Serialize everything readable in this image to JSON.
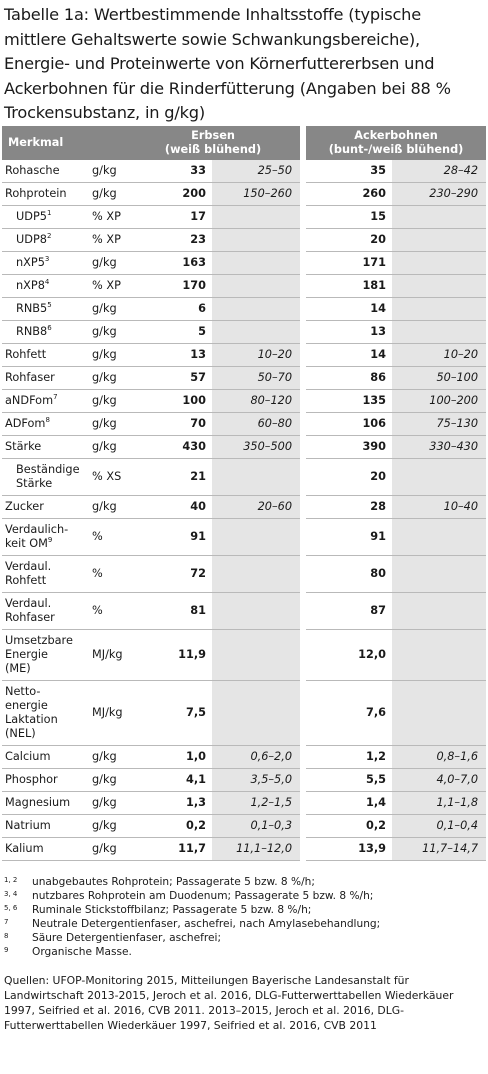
{
  "title": [
    "Tabelle 1a: Wertbestimmende Inhaltsstoffe (typische",
    "mittlere Gehaltswerte sowie Schwankungsbereiche),",
    "Energie- und Proteinwerte von Körnerfuttererbsen und",
    "Ackerbohnen für die Rinderfütterung (Angaben bei 88 %",
    "Trockensubstanz, in g/kg)"
  ],
  "table": {
    "header": {
      "feature": "Merkmal",
      "group1": [
        "Erbsen",
        "(weiß blühend)"
      ],
      "group2": [
        "Ackerbohnen",
        "(bunt-/weiß blühend)"
      ]
    },
    "rows": [
      {
        "name": [
          "Rohasche"
        ],
        "unit": "g/kg",
        "v1": "33",
        "r1": "25–50",
        "v2": "35",
        "r2": "28–42"
      },
      {
        "name": [
          "Rohprotein"
        ],
        "unit": "g/kg",
        "v1": "200",
        "r1": "150–260",
        "v2": "260",
        "r2": "230–290"
      },
      {
        "name": [
          "UDP5"
        ],
        "sup": "1",
        "indent": true,
        "unit": "% XP",
        "v1": "17",
        "v2": "15"
      },
      {
        "name": [
          "UDP8"
        ],
        "sup": "2",
        "indent": true,
        "unit": "% XP",
        "v1": "23",
        "v2": "20"
      },
      {
        "name": [
          "nXP5"
        ],
        "sup": "3",
        "indent": true,
        "unit": "g/kg",
        "v1": "163",
        "v2": "171"
      },
      {
        "name": [
          "nXP8"
        ],
        "sup": "4",
        "indent": true,
        "unit": "% XP",
        "v1": "170",
        "v2": "181"
      },
      {
        "name": [
          "RNB5"
        ],
        "sup": "5",
        "indent": true,
        "unit": "g/kg",
        "v1": "6",
        "v2": "14"
      },
      {
        "name": [
          "RNB8"
        ],
        "sup": "6",
        "indent": true,
        "unit": "g/kg",
        "v1": "5",
        "v2": "13"
      },
      {
        "name": [
          "Rohfett"
        ],
        "unit": "g/kg",
        "v1": "13",
        "r1": "10–20",
        "v2": "14",
        "r2": "10–20"
      },
      {
        "name": [
          "Rohfaser"
        ],
        "unit": "g/kg",
        "v1": "57",
        "r1": "50–70",
        "v2": "86",
        "r2": "50–100"
      },
      {
        "name": [
          "aNDFom"
        ],
        "sup": "7",
        "unit": "g/kg",
        "v1": "100",
        "r1": "80–120",
        "v2": "135",
        "r2": "100–200"
      },
      {
        "name": [
          "ADFom"
        ],
        "sup": "8",
        "unit": "g/kg",
        "v1": "70",
        "r1": "60–80",
        "v2": "106",
        "r2": "75–130"
      },
      {
        "name": [
          "Stärke"
        ],
        "unit": "g/kg",
        "v1": "430",
        "r1": "350–500",
        "v2": "390",
        "r2": "330–430"
      },
      {
        "name": [
          "Beständige",
          "Stärke"
        ],
        "indent": true,
        "unit": "% XS",
        "v1": "21",
        "v2": "20"
      },
      {
        "name": [
          "Zucker"
        ],
        "unit": "g/kg",
        "v1": "40",
        "r1": "20–60",
        "v2": "28",
        "r2": "10–40"
      },
      {
        "name": [
          "Verdaulich-",
          "keit OM"
        ],
        "sup": "9",
        "unit": "%",
        "v1": "91",
        "v2": "91"
      },
      {
        "name": [
          "Verdaul.",
          "Rohfett"
        ],
        "unit": "%",
        "v1": "72",
        "v2": "80"
      },
      {
        "name": [
          "Verdaul.",
          "Rohfaser"
        ],
        "unit": "%",
        "v1": "81",
        "v2": "87"
      },
      {
        "name": [
          "Umsetzbare",
          "Energie",
          "(ME)"
        ],
        "unit": "MJ/kg",
        "v1": "11,9",
        "v2": "12,0"
      },
      {
        "name": [
          "Netto-",
          "energie",
          "Laktation",
          "(NEL)"
        ],
        "unit": "MJ/kg",
        "v1": "7,5",
        "v2": "7,6"
      },
      {
        "name": [
          "Calcium"
        ],
        "unit": "g/kg",
        "v1": "1,0",
        "r1": "0,6–2,0",
        "v2": "1,2",
        "r2": "0,8–1,6"
      },
      {
        "name": [
          "Phosphor"
        ],
        "unit": "g/kg",
        "v1": "4,1",
        "r1": "3,5–5,0",
        "v2": "5,5",
        "r2": "4,0–7,0"
      },
      {
        "name": [
          "Magnesium"
        ],
        "unit": "g/kg",
        "v1": "1,3",
        "r1": "1,2–1,5",
        "v2": "1,4",
        "r2": "1,1–1,8"
      },
      {
        "name": [
          "Natrium"
        ],
        "unit": "g/kg",
        "v1": "0,2",
        "r1": "0,1–0,3",
        "v2": "0,2",
        "r2": "0,1–0,4"
      },
      {
        "name": [
          "Kalium"
        ],
        "unit": "g/kg",
        "v1": "11,7",
        "r1": "11,1–12,0",
        "v2": "13,9",
        "r2": "11,7–14,7"
      }
    ]
  },
  "footnotes": [
    {
      "marker": "1, 2",
      "text": "unabgebautes Rohprotein; Passagerate 5 bzw. 8 %/h;"
    },
    {
      "marker": "3, 4",
      "text": "nutzbares Rohprotein am Duodenum; Passagerate 5 bzw. 8 %/h;"
    },
    {
      "marker": "5, 6",
      "text": "Ruminale Stickstoffbilanz; Passagerate 5 bzw. 8 %/h;"
    },
    {
      "marker": "7",
      "text": "Neutrale Detergentienfaser, aschefrei, nach Amylasebehandlung;"
    },
    {
      "marker": "8",
      "text": "Säure Detergentienfaser, aschefrei;"
    },
    {
      "marker": "9",
      "text": "Organische Masse."
    }
  ],
  "sources": [
    "Quellen: UFOP-Monitoring 2015, Mitteilungen Bayerische Landesanstalt für Landwirtschaft 2013-2015, Jeroch et al. 2016, DLG-Futterwerttabellen Wiederkäuer 1997, Seifried et al. 2016, CVB 2011. 2013–2015, Jeroch et al. 2016, DLG-Futterwerttabellen Wiederkäuer 1997, Seifried et al. 2016, CVB 2011"
  ]
}
